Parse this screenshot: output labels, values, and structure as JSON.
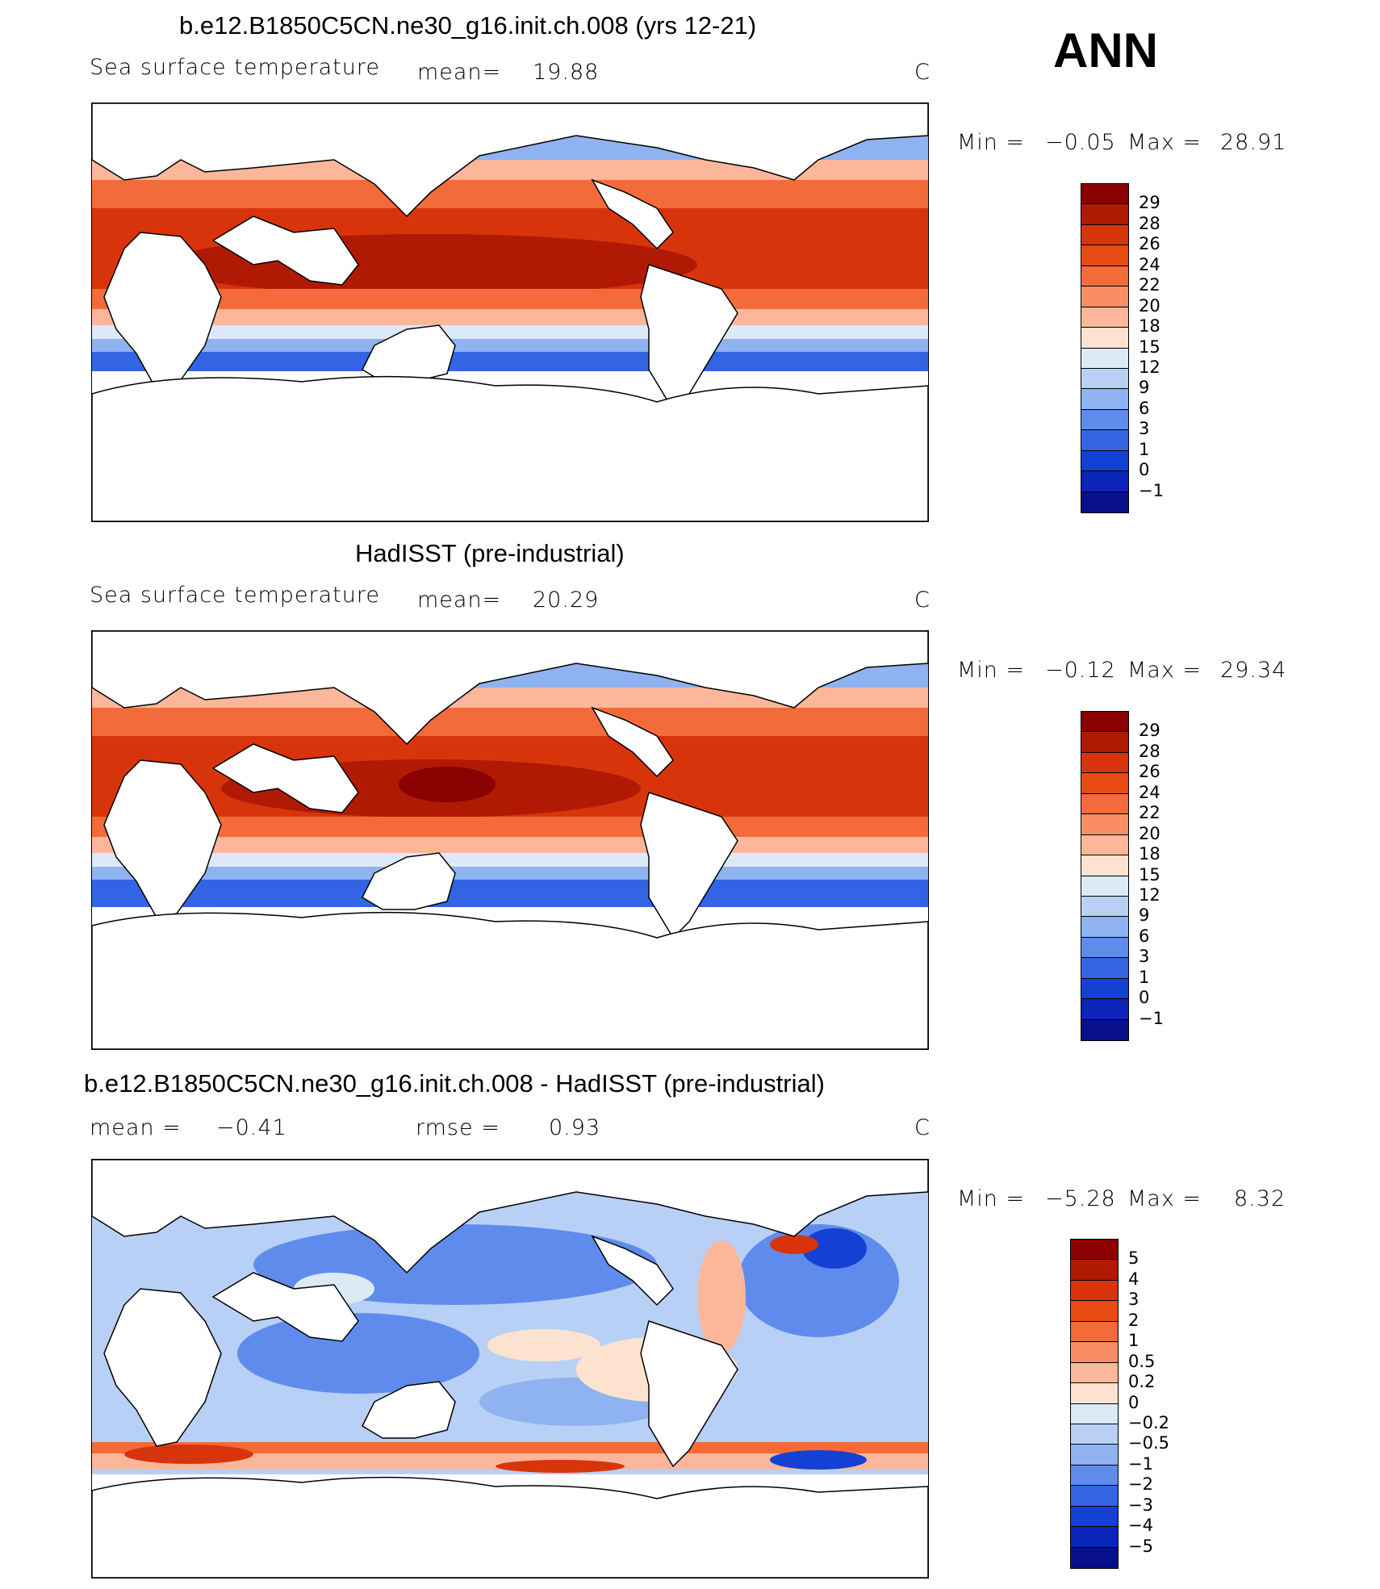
{
  "season": "ANN",
  "panels": [
    {
      "title": "b.e12.B1850C5CN.ne30_g16.init.ch.008 (yrs 12-21)",
      "left_label": "Sea surface temperature",
      "mean_label": "mean=",
      "mean_value": "19.88",
      "units": "C",
      "min_label": "Min =",
      "min_value": "−0.05",
      "max_label": "Max =",
      "max_value": "28.91",
      "colorbar_labels": [
        "29",
        "28",
        "26",
        "24",
        "22",
        "20",
        "18",
        "15",
        "12",
        "9",
        "6",
        "3",
        "1",
        "0",
        "−1"
      ]
    },
    {
      "title": "HadISST (pre-industrial)",
      "left_label": "Sea surface temperature",
      "mean_label": "mean=",
      "mean_value": "20.29",
      "units": "C",
      "min_label": "Min =",
      "min_value": "−0.12",
      "max_label": "Max =",
      "max_value": "29.34",
      "colorbar_labels": [
        "29",
        "28",
        "26",
        "24",
        "22",
        "20",
        "18",
        "15",
        "12",
        "9",
        "6",
        "3",
        "1",
        "0",
        "−1"
      ]
    },
    {
      "title": "b.e12.B1850C5CN.ne30_g16.init.ch.008 - HadISST (pre-industrial)",
      "mean_label": "mean =",
      "mean_value": "−0.41",
      "rmse_label": "rmse =",
      "rmse_value": "0.93",
      "units": "C",
      "min_label": "Min =",
      "min_value": "−5.28",
      "max_label": "Max =",
      "max_value": "8.32",
      "colorbar_labels": [
        "5",
        "4",
        "3",
        "2",
        "1",
        "0.5",
        "0.2",
        "0",
        "−0.2",
        "−0.5",
        "−1",
        "−2",
        "−3",
        "−4",
        "−5"
      ]
    }
  ],
  "colors": {
    "sst_scale": [
      "#8b0000",
      "#b01a05",
      "#d8340c",
      "#e84a14",
      "#f36b3a",
      "#f98d63",
      "#fcb79a",
      "#fde3cf",
      "#dceaf8",
      "#b8d0f5",
      "#8fb2f0",
      "#5f8cec",
      "#3264e3",
      "#1540d6",
      "#0a24b8",
      "#07108a"
    ],
    "diff_scale": [
      "#8b0000",
      "#b01a05",
      "#d8340c",
      "#e84a14",
      "#f36b3a",
      "#f98d63",
      "#fcb79a",
      "#fde3cf",
      "#dceaf8",
      "#b8d0f5",
      "#8fb2f0",
      "#5f8cec",
      "#3264e3",
      "#1540d6",
      "#0a24b8",
      "#07108a"
    ],
    "land": "#ffffff",
    "coastline": "#000000"
  }
}
